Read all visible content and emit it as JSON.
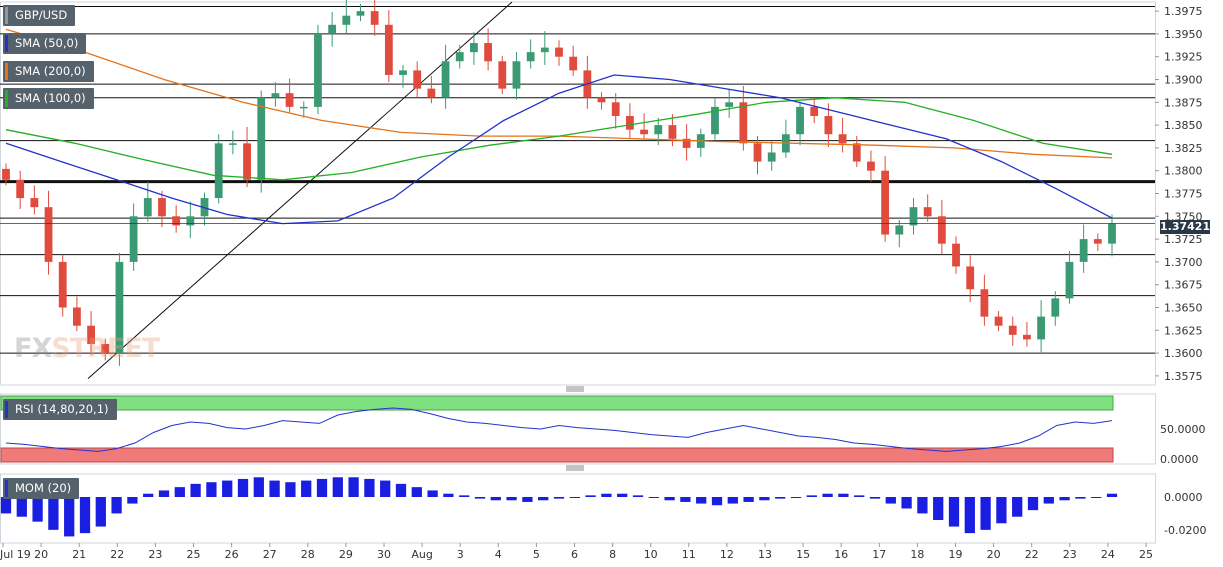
{
  "chart_data": {
    "type": "candlestick",
    "symbol": "GBP/USD",
    "indicators": [
      {
        "name": "SMA (50,0)",
        "color": "#2233cc"
      },
      {
        "name": "SMA (200,0)",
        "color": "#e5731b"
      },
      {
        "name": "SMA (100,0)",
        "color": "#23b023"
      }
    ],
    "price_axis": {
      "ylim": [
        1.3565,
        1.3985
      ],
      "ticks": [
        "1.3975",
        "1.3950",
        "1.3925",
        "1.3900",
        "1.3875",
        "1.3850",
        "1.3825",
        "1.3800",
        "1.3775",
        "1.3750",
        "1.3725",
        "1.3700",
        "1.3675",
        "1.3650",
        "1.3625",
        "1.3600",
        "1.3575"
      ]
    },
    "current_price": "1.37421",
    "x_labels": [
      "Jul 19",
      "20",
      "21",
      "22",
      "23",
      "25",
      "26",
      "27",
      "28",
      "29",
      "30",
      "Aug",
      "3",
      "4",
      "5",
      "6",
      "8",
      "10",
      "11",
      "12",
      "13",
      "15",
      "16",
      "17",
      "18",
      "19",
      "20",
      "22",
      "23",
      "24",
      "25"
    ],
    "horizontal_levels": [
      1.398,
      1.395,
      1.3895,
      1.388,
      1.3833,
      1.3788,
      1.3748,
      1.3708,
      1.3663,
      1.36
    ],
    "thick_level": 1.3788,
    "close_path": [
      1.379,
      1.377,
      1.376,
      1.37,
      1.365,
      1.363,
      1.361,
      1.36,
      1.37,
      1.375,
      1.377,
      1.375,
      1.374,
      1.375,
      1.377,
      1.383,
      1.383,
      1.379,
      1.388,
      1.3885,
      1.387,
      1.387,
      1.395,
      1.396,
      1.397,
      1.3975,
      1.396,
      1.3905,
      1.391,
      1.389,
      1.388,
      1.392,
      1.393,
      1.394,
      1.392,
      1.389,
      1.392,
      1.393,
      1.3935,
      1.3925,
      1.391,
      1.388,
      1.3875,
      1.386,
      1.3845,
      1.384,
      1.385,
      1.3835,
      1.3825,
      1.384,
      1.387,
      1.3875,
      1.383,
      1.381,
      1.382,
      1.384,
      1.387,
      1.386,
      1.384,
      1.383,
      1.381,
      1.38,
      1.373,
      1.374,
      1.376,
      1.375,
      1.372,
      1.3695,
      1.367,
      1.364,
      1.363,
      1.362,
      1.3615,
      1.364,
      1.366,
      1.37,
      1.3725,
      1.372,
      1.3742
    ],
    "sma50_path": [
      1.383,
      1.381,
      1.379,
      1.377,
      1.3752,
      1.3742,
      1.3745,
      1.377,
      1.3815,
      1.3855,
      1.3885,
      1.3905,
      1.39,
      1.389,
      1.388,
      1.3865,
      1.385,
      1.3835,
      1.381,
      1.378,
      1.3748
    ],
    "sma200_path": [
      1.3955,
      1.393,
      1.39,
      1.3875,
      1.3855,
      1.3842,
      1.3838,
      1.3838,
      1.3835,
      1.3832,
      1.383,
      1.3828,
      1.3825,
      1.3818,
      1.3814
    ],
    "sma100_path": [
      1.3845,
      1.383,
      1.3812,
      1.3795,
      1.379,
      1.3798,
      1.3815,
      1.3828,
      1.3838,
      1.385,
      1.3862,
      1.3875,
      1.388,
      1.3875,
      1.3855,
      1.383,
      1.3818
    ],
    "rsi": {
      "name": "RSI (14,80,20,1)",
      "ticks": [
        "50.0000",
        "0.0000"
      ],
      "upper_zone": 80,
      "lower_zone": 20,
      "values": [
        30,
        28,
        25,
        22,
        20,
        18,
        22,
        30,
        45,
        55,
        60,
        58,
        52,
        50,
        55,
        62,
        60,
        58,
        70,
        75,
        78,
        80,
        78,
        72,
        65,
        60,
        58,
        55,
        52,
        50,
        55,
        52,
        50,
        48,
        45,
        42,
        40,
        38,
        45,
        50,
        55,
        50,
        45,
        40,
        38,
        35,
        30,
        28,
        25,
        22,
        20,
        18,
        20,
        22,
        25,
        30,
        40,
        55,
        60,
        58,
        62
      ]
    },
    "momentum": {
      "name": "MOM (20)",
      "ticks": [
        "0.0000",
        "-0.0200"
      ],
      "ylim": [
        -0.028,
        0.014
      ],
      "values": [
        -0.01,
        -0.012,
        -0.015,
        -0.02,
        -0.024,
        -0.022,
        -0.018,
        -0.01,
        -0.004,
        0.002,
        0.004,
        0.006,
        0.008,
        0.009,
        0.01,
        0.011,
        0.012,
        0.01,
        0.009,
        0.01,
        0.011,
        0.012,
        0.012,
        0.011,
        0.01,
        0.008,
        0.006,
        0.004,
        0.002,
        0.001,
        -0.001,
        -0.002,
        -0.002,
        -0.003,
        -0.002,
        -0.001,
        0.0,
        0.001,
        0.002,
        0.002,
        0.001,
        0.0,
        -0.002,
        -0.003,
        -0.004,
        -0.005,
        -0.004,
        -0.003,
        -0.002,
        -0.001,
        0.0,
        0.001,
        0.002,
        0.002,
        0.001,
        -0.001,
        -0.004,
        -0.007,
        -0.01,
        -0.014,
        -0.018,
        -0.022,
        -0.02,
        -0.016,
        -0.012,
        -0.008,
        -0.004,
        -0.002,
        -0.001,
        0.0,
        0.002
      ]
    }
  },
  "watermark": {
    "fx": "FX",
    "street": "STREET"
  }
}
